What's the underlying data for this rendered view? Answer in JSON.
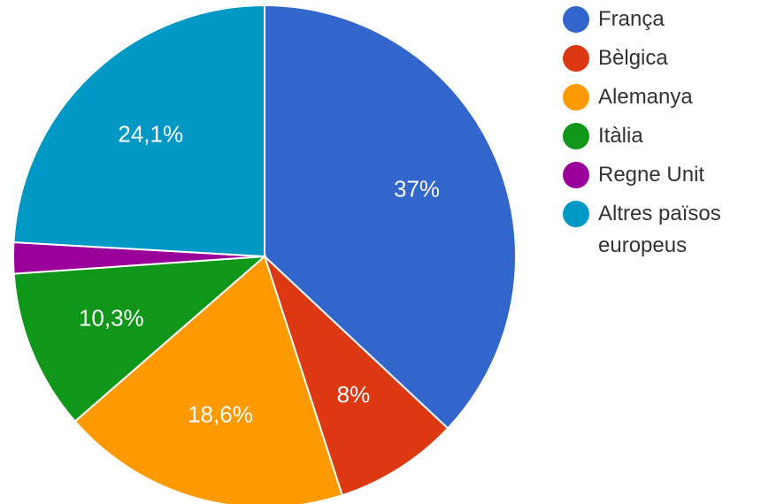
{
  "chart_data": {
    "type": "pie",
    "title": "",
    "start_angle_deg": 0,
    "direction": "clockwise",
    "slices": [
      {
        "label": "França",
        "value": 37,
        "value_label": "37%",
        "color": "#3366cc"
      },
      {
        "label": "Bèlgica",
        "value": 8,
        "value_label": "8%",
        "color": "#dc3912"
      },
      {
        "label": "Alemanya",
        "value": 18.6,
        "value_label": "18,6%",
        "color": "#ff9900"
      },
      {
        "label": "Itàlia",
        "value": 10.3,
        "value_label": "10,3%",
        "color": "#109618"
      },
      {
        "label": "Regne Unit",
        "value": 2,
        "value_label": "",
        "color": "#990099"
      },
      {
        "label": "Altres països europeus",
        "value": 24.1,
        "value_label": "24,1%",
        "color": "#0099c6"
      }
    ],
    "legend_position": "right"
  }
}
